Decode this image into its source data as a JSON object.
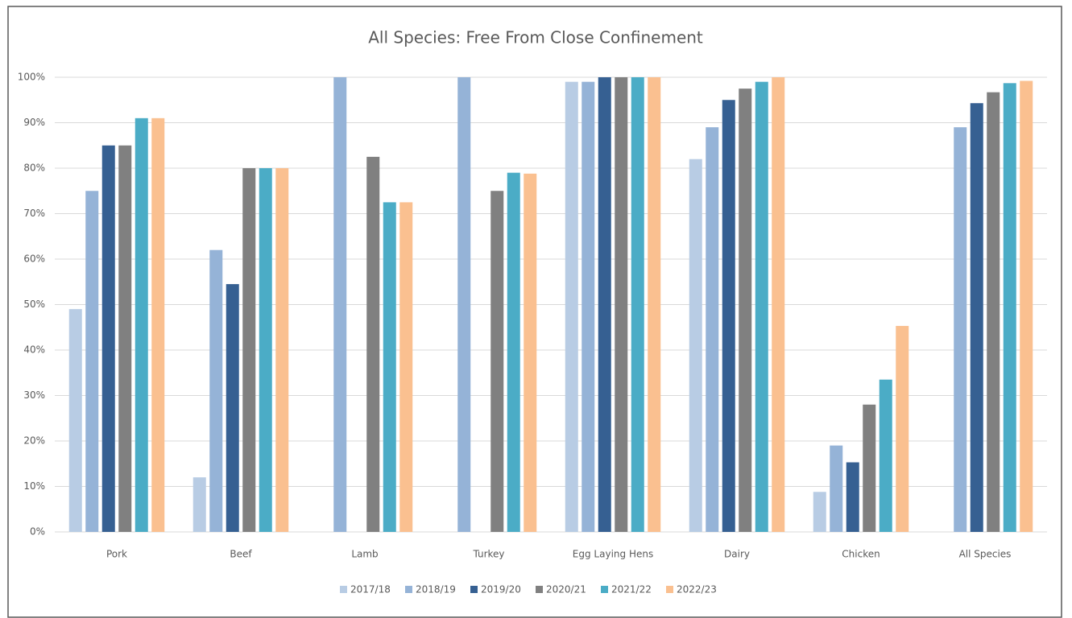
{
  "chart_data": {
    "type": "bar",
    "title": "All Species: Free From Close Confinement",
    "categories": [
      "Pork",
      "Beef",
      "Lamb",
      "Turkey",
      "Egg Laying Hens",
      "Dairy",
      "Chicken",
      "All Species"
    ],
    "series": [
      {
        "name": "2017/18",
        "color": "#b8cce4",
        "values": [
          49,
          12,
          null,
          null,
          99,
          82,
          8.8,
          null
        ]
      },
      {
        "name": "2018/19",
        "color": "#95b3d7",
        "values": [
          75,
          62,
          100,
          100,
          99,
          89,
          19,
          89
        ]
      },
      {
        "name": "2019/20",
        "color": "#366092",
        "values": [
          85,
          54.5,
          null,
          null,
          100,
          95,
          15.3,
          94.3
        ]
      },
      {
        "name": "2020/21",
        "color": "#808080",
        "values": [
          85,
          80,
          82.5,
          75,
          100,
          97.5,
          28,
          96.7
        ]
      },
      {
        "name": "2021/22",
        "color": "#4bacc6",
        "values": [
          91,
          80,
          72.5,
          79,
          100,
          99,
          33.5,
          98.7
        ]
      },
      {
        "name": "2022/23",
        "color": "#fac090",
        "values": [
          91,
          80,
          72.5,
          78.8,
          100,
          100,
          45.3,
          99.2
        ]
      }
    ],
    "ylim": [
      0,
      100
    ],
    "yticks": [
      {
        "value": 0,
        "label": "0%"
      },
      {
        "value": 10,
        "label": "10%"
      },
      {
        "value": 20,
        "label": "20%"
      },
      {
        "value": 30,
        "label": "30%"
      },
      {
        "value": 40,
        "label": "40%"
      },
      {
        "value": 50,
        "label": "50%"
      },
      {
        "value": 60,
        "label": "60%"
      },
      {
        "value": 70,
        "label": "70%"
      },
      {
        "value": 80,
        "label": "80%"
      },
      {
        "value": 90,
        "label": "90%"
      },
      {
        "value": 100,
        "label": "100%"
      }
    ],
    "grid": true,
    "legend": "bottom"
  }
}
